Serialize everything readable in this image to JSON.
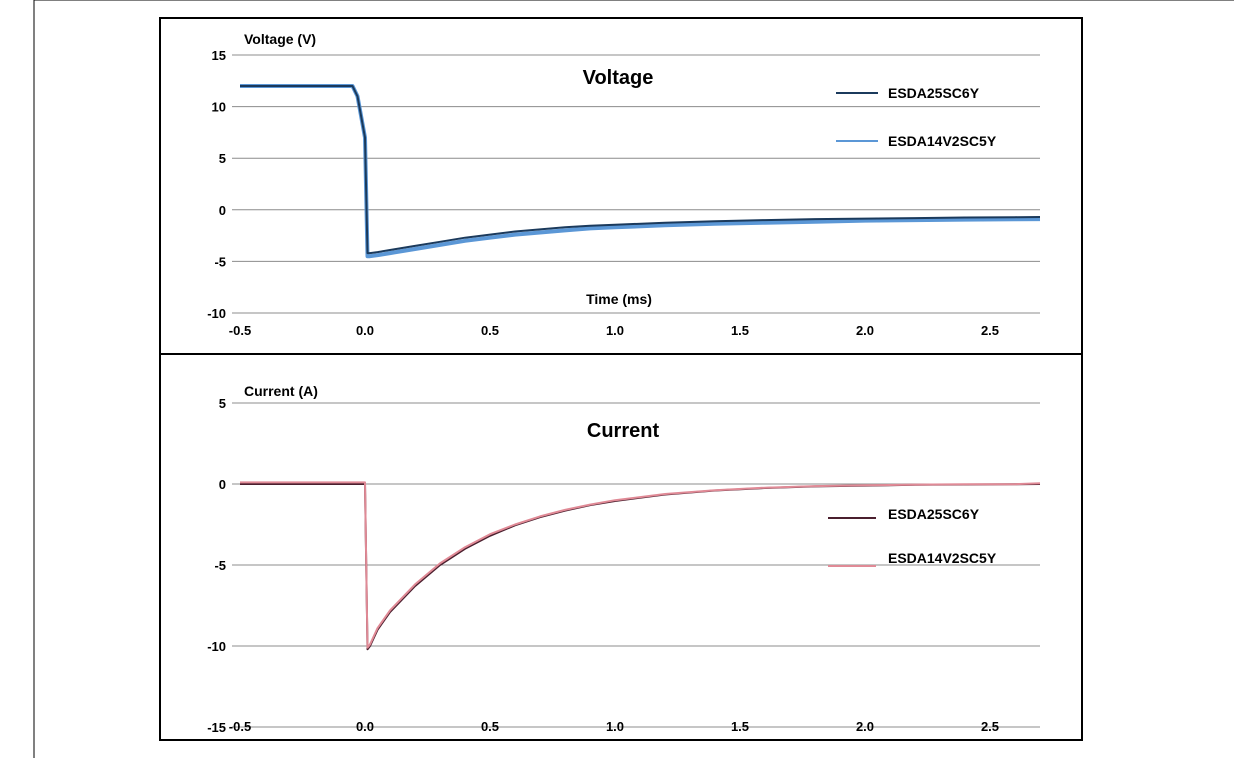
{
  "chart_data": [
    {
      "type": "line",
      "title": "Voltage",
      "ylabel": "Voltage (V)",
      "xlabel": "Time (ms)",
      "xlim": [
        -0.5,
        2.7
      ],
      "ylim": [
        -10,
        15
      ],
      "x_ticks": [
        "-0.5",
        "0.0",
        "0.5",
        "1.0",
        "1.5",
        "2.0",
        "2.5"
      ],
      "y_ticks": [
        "15",
        "10",
        "5",
        "0",
        "-5",
        "-10"
      ],
      "grid": "horizontal",
      "legend_position": "top-right",
      "series": [
        {
          "name": "ESDA25SC6Y",
          "color": "#1b3a5c",
          "x": [
            -0.5,
            -0.05,
            -0.03,
            0.0,
            0.01,
            0.02,
            0.05,
            0.1,
            0.2,
            0.3,
            0.4,
            0.5,
            0.6,
            0.7,
            0.8,
            0.9,
            1.0,
            1.2,
            1.4,
            1.6,
            1.8,
            2.0,
            2.2,
            2.4,
            2.6,
            2.7
          ],
          "y": [
            12.0,
            12.0,
            11.0,
            7.0,
            -4.2,
            -4.2,
            -4.1,
            -3.9,
            -3.5,
            -3.1,
            -2.7,
            -2.4,
            -2.1,
            -1.9,
            -1.7,
            -1.55,
            -1.45,
            -1.25,
            -1.1,
            -1.0,
            -0.9,
            -0.85,
            -0.8,
            -0.75,
            -0.72,
            -0.7
          ]
        },
        {
          "name": "ESDA14V2SC5Y",
          "color": "#5b97d6",
          "x": [
            -0.5,
            -0.05,
            -0.03,
            0.0,
            0.01,
            0.02,
            0.05,
            0.1,
            0.2,
            0.3,
            0.4,
            0.5,
            0.6,
            0.7,
            0.8,
            0.9,
            1.0,
            1.2,
            1.4,
            1.6,
            1.8,
            2.0,
            2.2,
            2.4,
            2.6,
            2.7
          ],
          "y": [
            12.0,
            12.0,
            11.0,
            7.0,
            -4.5,
            -4.5,
            -4.4,
            -4.2,
            -3.8,
            -3.4,
            -3.0,
            -2.7,
            -2.4,
            -2.2,
            -2.0,
            -1.8,
            -1.7,
            -1.5,
            -1.35,
            -1.25,
            -1.15,
            -1.05,
            -1.0,
            -0.95,
            -0.92,
            -0.9
          ]
        }
      ]
    },
    {
      "type": "line",
      "title": "Current",
      "ylabel": "Current (A)",
      "xlabel": "",
      "xlim": [
        -0.5,
        2.7
      ],
      "ylim": [
        -15,
        5
      ],
      "x_ticks": [
        "-0.5",
        "0.0",
        "0.5",
        "1.0",
        "1.5",
        "2.0",
        "2.5"
      ],
      "y_ticks": [
        "5",
        "0",
        "-5",
        "-10",
        "-15"
      ],
      "grid": "horizontal",
      "legend_position": "right",
      "series": [
        {
          "name": "ESDA25SC6Y",
          "color": "#4a1f2e",
          "x": [
            -0.5,
            0.0,
            0.01,
            0.02,
            0.05,
            0.1,
            0.2,
            0.3,
            0.4,
            0.5,
            0.6,
            0.7,
            0.8,
            0.9,
            1.0,
            1.2,
            1.4,
            1.6,
            1.8,
            2.0,
            2.2,
            2.4,
            2.6,
            2.7
          ],
          "y": [
            0.0,
            0.0,
            -10.2,
            -10.0,
            -9.0,
            -7.9,
            -6.3,
            -5.0,
            -4.0,
            -3.2,
            -2.55,
            -2.05,
            -1.65,
            -1.3,
            -1.05,
            -0.65,
            -0.4,
            -0.25,
            -0.15,
            -0.1,
            -0.05,
            -0.03,
            -0.02,
            0.0
          ]
        },
        {
          "name": "ESDA14V2SC5Y",
          "color": "#e08a96",
          "x": [
            -0.5,
            0.0,
            0.01,
            0.02,
            0.05,
            0.1,
            0.2,
            0.3,
            0.4,
            0.5,
            0.6,
            0.7,
            0.8,
            0.9,
            1.0,
            1.2,
            1.4,
            1.6,
            1.8,
            2.0,
            2.2,
            2.4,
            2.6,
            2.7
          ],
          "y": [
            0.1,
            0.1,
            -10.1,
            -9.9,
            -8.9,
            -7.8,
            -6.2,
            -4.9,
            -3.9,
            -3.1,
            -2.5,
            -2.0,
            -1.6,
            -1.27,
            -1.0,
            -0.62,
            -0.38,
            -0.23,
            -0.13,
            -0.08,
            -0.04,
            -0.02,
            -0.01,
            0.05
          ]
        }
      ]
    }
  ]
}
